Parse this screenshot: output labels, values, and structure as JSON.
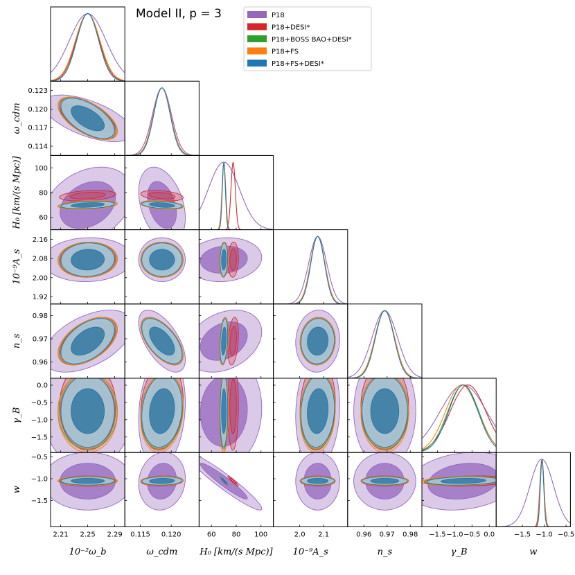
{
  "chart_data": {
    "type": "corner-plot",
    "title": "Model II, p = 3",
    "parameters": [
      {
        "key": "omega_b",
        "label": "10⁻²ω_b",
        "ticks": [
          "2.21",
          "2.25",
          "2.29"
        ],
        "tick_values": [
          2.21,
          2.25,
          2.29
        ],
        "range": [
          2.195,
          2.305
        ],
        "mean": 2.25,
        "sd": 0.018
      },
      {
        "key": "omega_cdm",
        "label": "ω_cdm",
        "ticks": [
          "0.115",
          "0.120"
        ],
        "tick_values": [
          0.115,
          0.12
        ],
        "range": [
          0.1125,
          0.1245
        ],
        "mean": 0.1185,
        "sd": 0.0014
      },
      {
        "key": "H0",
        "label": "H₀ [km/(s Mpc)]",
        "ticks": [
          "60",
          "80",
          "100"
        ],
        "tick_values": [
          60,
          80,
          100
        ],
        "range": [
          50,
          110
        ],
        "mean": 70,
        "sd": 2.5
      },
      {
        "key": "As",
        "label": "10⁻⁹A_s",
        "ticks": [
          "2.0",
          "2.1"
        ],
        "tick_values": [
          2.0,
          2.1
        ],
        "range": [
          1.89,
          2.2
        ],
        "mean": 2.075,
        "sd": 0.03
      },
      {
        "key": "ns",
        "label": "n_s",
        "ticks": [
          "0.96",
          "0.97",
          "0.98"
        ],
        "tick_values": [
          0.96,
          0.97,
          0.98
        ],
        "range": [
          0.953,
          0.985
        ],
        "mean": 0.969,
        "sd": 0.0042
      },
      {
        "key": "gammaB",
        "label": "γ_B",
        "ticks": [
          "−1.5",
          "−1.0",
          "−0.5",
          "0.0"
        ],
        "tick_values": [
          -1.5,
          -1.0,
          -0.5,
          0.0
        ],
        "range": [
          -1.95,
          0.2
        ],
        "mean": -0.75,
        "sd": 0.45
      },
      {
        "key": "w",
        "label": "w",
        "ticks": [
          "−1.5",
          "−1.0",
          "−0.5"
        ],
        "tick_values": [
          -1.5,
          -1.0,
          -0.5
        ],
        "range": [
          -2.1,
          -0.4
        ],
        "mean": -1.05,
        "sd": 0.06
      }
    ],
    "row_ticks": {
      "omega_cdm": [
        "0.123",
        "0.120",
        "0.117",
        "0.114"
      ],
      "H0": [
        "100",
        "80",
        "60"
      ],
      "As": [
        "2.16",
        "2.08",
        "2.00",
        "1.92"
      ],
      "ns": [
        "0.98",
        "0.97",
        "0.96"
      ],
      "gammaB": [
        "0.0",
        "−0.5",
        "−1.0",
        "−1.5"
      ],
      "w": [
        "−0.5",
        "−1.0",
        "−1.5"
      ]
    },
    "row_tick_values": {
      "omega_cdm": [
        0.123,
        0.12,
        0.117,
        0.114
      ],
      "H0": [
        100,
        80,
        60
      ],
      "As": [
        2.16,
        2.08,
        2.0,
        1.92
      ],
      "ns": [
        0.98,
        0.97,
        0.96
      ],
      "gammaB": [
        0.0,
        -0.5,
        -1.0,
        -1.5
      ],
      "w": [
        -0.5,
        -1.0,
        -1.5
      ]
    },
    "row_labels": [
      "",
      "ω_cdm",
      "H₀ [km/(s Mpc)]",
      "10⁻⁹A_s",
      "n_s",
      "γ_B",
      "w"
    ],
    "series": [
      {
        "name": "P18",
        "color": "#9467bd",
        "sd_scale": [
          1.5,
          1.1,
          5.0,
          1.25,
          1.3,
          1.5,
          4.5
        ],
        "mean_shift": [
          0,
          0,
          0,
          0,
          0,
          0,
          -0.05
        ]
      },
      {
        "name": "P18+DESI*",
        "color": "#d62728",
        "sd_scale": [
          0.95,
          1.0,
          0.7,
          1.0,
          1.0,
          1.15,
          0.8
        ],
        "mean_shift": [
          0,
          0,
          1.5,
          0,
          0,
          0.15,
          -0.02
        ]
      },
      {
        "name": "P18+BOSS BAO+DESI*",
        "color": "#2ca02c",
        "sd_scale": [
          1.0,
          1.0,
          0.55,
          1.0,
          1.0,
          1.0,
          0.7
        ],
        "mean_shift": [
          0,
          0,
          0,
          0,
          0,
          0,
          0
        ]
      },
      {
        "name": "P18+FS",
        "color": "#ff7f0e",
        "sd_scale": [
          1.0,
          1.0,
          0.6,
          1.0,
          1.0,
          1.05,
          0.75
        ],
        "mean_shift": [
          0,
          0,
          0,
          0,
          0,
          -0.05,
          0
        ]
      },
      {
        "name": "P18+FS+DESI*",
        "color": "#1f77b4",
        "sd_scale": [
          0.9,
          0.95,
          0.5,
          0.95,
          0.95,
          0.95,
          0.65
        ],
        "mean_shift": [
          0,
          0,
          0,
          0,
          0,
          0,
          0
        ]
      }
    ],
    "correlations": {
      "0-1": -0.6,
      "0-2": 0.3,
      "0-3": 0.05,
      "0-4": 0.5,
      "0-5": 0.0,
      "0-6": 0.0,
      "1-2": -0.35,
      "1-3": 0.0,
      "1-4": -0.6,
      "1-5": 0.15,
      "1-6": 0.1,
      "2-3": 0.1,
      "2-4": 0.3,
      "2-5": 0.05,
      "2-6": -0.95,
      "3-4": 0.05,
      "3-5": 0.1,
      "3-6": 0.0,
      "4-5": 0.0,
      "4-6": 0.0,
      "5-6": 0.2
    }
  }
}
